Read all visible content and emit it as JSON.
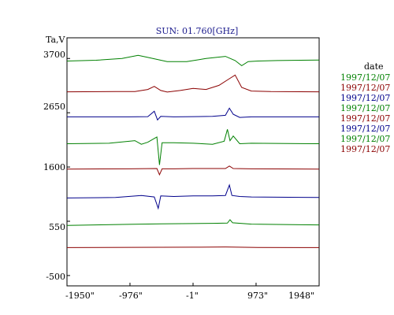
{
  "chart_data": {
    "type": "line",
    "title": "SUN: 01.760[GHz]",
    "ylabel": "Ta,V",
    "xlabel": "",
    "yticks": [
      "3700",
      "2650",
      "1600",
      "550",
      "-500"
    ],
    "ytick_values": [
      3700,
      2650,
      1600,
      550,
      -500
    ],
    "xticks": [
      "-1950\"",
      "-976\"",
      "-1\"",
      "973\"",
      "1948\""
    ],
    "xtick_values": [
      -1950,
      -976,
      -1,
      973,
      1948
    ],
    "xlim": [
      -1950,
      1948
    ],
    "ylim": [
      -700,
      4100
    ],
    "grid": false,
    "legend": {
      "title": "date",
      "placement": "right",
      "entries": [
        {
          "label": "1997/12/07",
          "color": "#008000"
        },
        {
          "label": "1997/12/07",
          "color": "#8b0000"
        },
        {
          "label": "1997/12/07",
          "color": "#00008b"
        },
        {
          "label": "1997/12/07",
          "color": "#008000"
        },
        {
          "label": "1997/12/07",
          "color": "#8b0000"
        },
        {
          "label": "1997/12/07",
          "color": "#00008b"
        },
        {
          "label": "1997/12/07",
          "color": "#008000"
        },
        {
          "label": "1997/12/07",
          "color": "#8b0000"
        }
      ]
    },
    "series": [
      {
        "color": "#008000",
        "x": [
          -1950,
          -1500,
          -1100,
          -850,
          -700,
          -400,
          -100,
          200,
          500,
          650,
          750,
          850,
          1000,
          1300,
          1948
        ],
        "y": [
          3650,
          3665,
          3700,
          3760,
          3720,
          3640,
          3640,
          3700,
          3740,
          3660,
          3560,
          3640,
          3650,
          3660,
          3670
        ]
      },
      {
        "color": "#8b0000",
        "x": [
          -1950,
          -1200,
          -900,
          -700,
          -600,
          -500,
          -400,
          -200,
          0,
          200,
          400,
          550,
          650,
          750,
          900,
          1200,
          1948
        ],
        "y": [
          3055,
          3060,
          3060,
          3100,
          3160,
          3080,
          3050,
          3080,
          3120,
          3100,
          3180,
          3300,
          3380,
          3140,
          3070,
          3060,
          3055
        ]
      },
      {
        "color": "#00008b",
        "x": [
          -1950,
          -1000,
          -700,
          -600,
          -550,
          -500,
          -300,
          0,
          300,
          500,
          560,
          620,
          720,
          900,
          1948
        ],
        "y": [
          2570,
          2570,
          2575,
          2680,
          2510,
          2580,
          2570,
          2575,
          2580,
          2600,
          2740,
          2620,
          2560,
          2570,
          2570
        ]
      },
      {
        "color": "#008000",
        "x": [
          -1950,
          -1300,
          -900,
          -800,
          -700,
          -560,
          -520,
          -480,
          -300,
          0,
          300,
          480,
          530,
          570,
          620,
          720,
          900,
          1948
        ],
        "y": [
          2050,
          2060,
          2110,
          2040,
          2080,
          2180,
          1640,
          2070,
          2070,
          2060,
          2040,
          2100,
          2330,
          2110,
          2200,
          2050,
          2060,
          2050
        ]
      },
      {
        "color": "#8b0000",
        "x": [
          -1950,
          -1000,
          -560,
          -520,
          -480,
          -300,
          0,
          300,
          500,
          560,
          620,
          900,
          1948
        ],
        "y": [
          1560,
          1565,
          1570,
          1450,
          1565,
          1565,
          1570,
          1570,
          1570,
          1620,
          1570,
          1565,
          1560
        ]
      },
      {
        "color": "#00008b",
        "x": [
          -1950,
          -1200,
          -800,
          -600,
          -540,
          -500,
          -300,
          0,
          300,
          500,
          560,
          600,
          720,
          900,
          1948
        ],
        "y": [
          1000,
          1010,
          1050,
          1020,
          800,
          1040,
          1030,
          1040,
          1040,
          1050,
          1250,
          1050,
          1030,
          1020,
          1010
        ]
      },
      {
        "color": "#008000",
        "x": [
          -1950,
          -1000,
          -500,
          0,
          300,
          530,
          570,
          610,
          900,
          1948
        ],
        "y": [
          470,
          490,
          500,
          505,
          510,
          515,
          580,
          520,
          495,
          480
        ]
      },
      {
        "color": "#8b0000",
        "x": [
          -1950,
          -1000,
          0,
          500,
          1000,
          1948
        ],
        "y": [
          40,
          45,
          48,
          52,
          44,
          40
        ]
      }
    ]
  }
}
